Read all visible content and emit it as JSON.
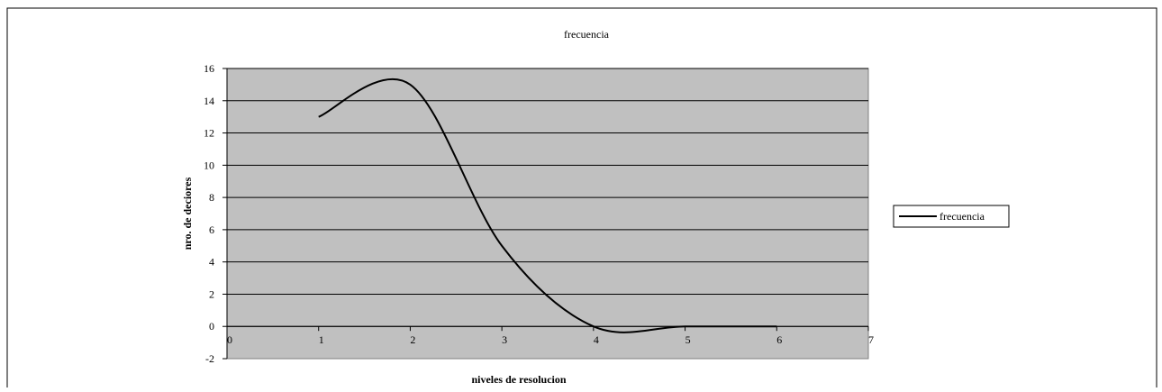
{
  "chart_data": {
    "type": "line",
    "title": "frecuencia",
    "xlabel": "niveles de resolucion",
    "ylabel": "nro. de deciores",
    "xlim": [
      0,
      7
    ],
    "ylim": [
      -2,
      16
    ],
    "x_ticks": [
      0,
      1,
      2,
      3,
      4,
      5,
      6,
      7
    ],
    "y_ticks": [
      -2,
      0,
      2,
      4,
      6,
      8,
      10,
      12,
      14,
      16
    ],
    "grid": true,
    "legend_position": "right",
    "series": [
      {
        "name": "frecuencia",
        "x": [
          1,
          2,
          3,
          4,
          5,
          6
        ],
        "y": [
          13,
          15,
          5,
          0,
          0,
          0
        ]
      }
    ],
    "colors": {
      "plot_background": "#c0c0c0",
      "line": "#000000",
      "grid": "#000000"
    }
  }
}
